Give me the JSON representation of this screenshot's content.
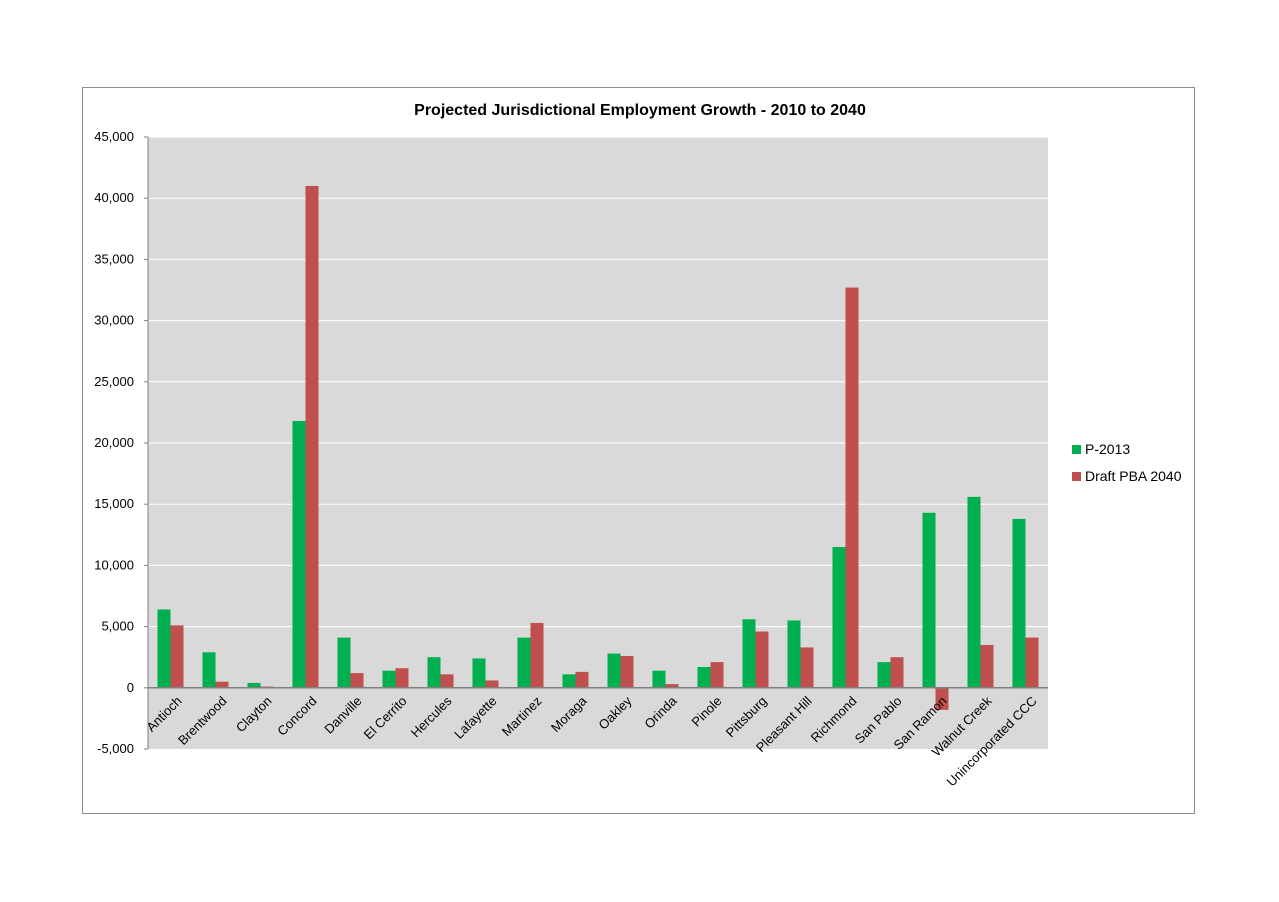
{
  "chart_data": {
    "type": "bar",
    "title": "Projected Jurisdictional Employment Growth - 2010 to 2040",
    "xlabel": "",
    "ylabel": "",
    "ylim": [
      -5000,
      45000
    ],
    "yticks": [
      -5000,
      0,
      5000,
      10000,
      15000,
      20000,
      25000,
      30000,
      35000,
      40000,
      45000
    ],
    "ytick_labels": [
      "-5,000",
      "0",
      "5,000",
      "10,000",
      "15,000",
      "20,000",
      "25,000",
      "30,000",
      "35,000",
      "40,000",
      "45,000"
    ],
    "grid": true,
    "legend_position": "right",
    "categories": [
      "Antioch",
      "Brentwood",
      "Clayton",
      "Concord",
      "Danville",
      "El Cerrito",
      "Hercules",
      "Lafayette",
      "Martinez",
      "Moraga",
      "Oakley",
      "Orinda",
      "Pinole",
      "Pittsburg",
      "Pleasant Hill",
      "Richmond",
      "San Pablo",
      "San Ramon",
      "Walnut Creek",
      "Unincorporated CCC"
    ],
    "series": [
      {
        "name": "P-2013",
        "color": "#00b050",
        "values": [
          6400,
          2900,
          400,
          21800,
          4100,
          1400,
          2500,
          2400,
          4100,
          1100,
          2800,
          1400,
          1700,
          5600,
          5500,
          11500,
          2100,
          14300,
          15600,
          13800
        ]
      },
      {
        "name": "Draft PBA 2040",
        "color": "#c0504d",
        "values": [
          5100,
          500,
          100,
          41000,
          1200,
          1600,
          1100,
          600,
          5300,
          1300,
          2600,
          300,
          2100,
          4600,
          3300,
          32700,
          2500,
          -1800,
          3500,
          4100
        ]
      }
    ]
  },
  "colors": {
    "plot_background": "#d9d9d9",
    "gridline": "#ffffff",
    "zero_line": "#808080",
    "frame_border": "#8c8c8c"
  }
}
